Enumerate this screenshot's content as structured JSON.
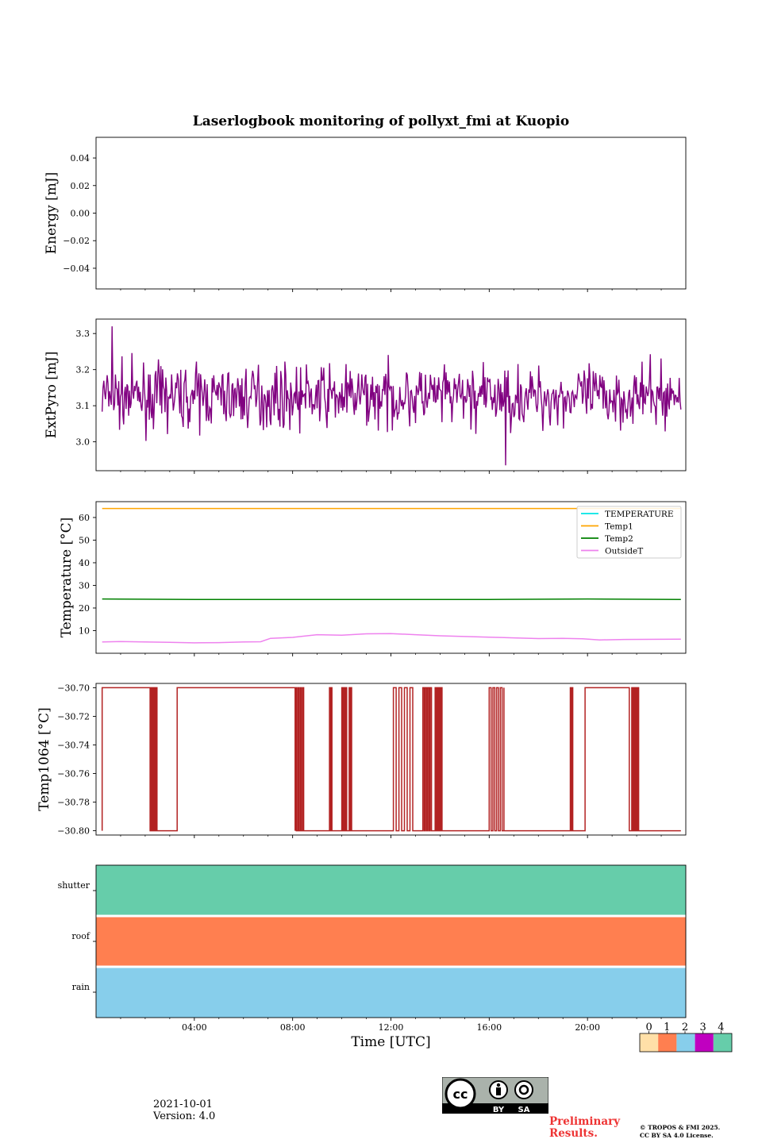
{
  "title": "Laserlogbook monitoring of pollyxt_fmi at Kuopio",
  "date": "2021-10-01",
  "version": "Version: 4.0",
  "preliminary": [
    "Preliminary",
    "Results."
  ],
  "copyright": [
    "© TROPOS & FMI 2025.",
    "CC BY SA 4.0 License."
  ],
  "license_badge": {
    "by": "BY",
    "sa": "SA"
  },
  "chart_data": [
    {
      "id": "energy",
      "type": "line",
      "ylabel": "Energy [mJ]",
      "ylim": [
        -0.055,
        0.055
      ],
      "yticks": [
        0.04,
        0.02,
        0.0,
        -0.02,
        -0.04
      ],
      "ytick_labels": [
        "0.04",
        "0.02",
        "0.00",
        "−0.02",
        "−0.04"
      ],
      "series": []
    },
    {
      "id": "extpyro",
      "type": "line",
      "ylabel": "ExtPyro [mJ]",
      "ylim": [
        2.92,
        3.34
      ],
      "yticks": [
        3.0,
        3.1,
        3.2,
        3.3
      ],
      "ytick_labels": [
        "3.0",
        "3.1",
        "3.2",
        "3.3"
      ],
      "series": [
        {
          "name": "ExtPyro",
          "color": "#800080",
          "mean": 3.125,
          "amplitude": 0.07,
          "x_range_hours": [
            0.25,
            23.8
          ],
          "min": 2.935,
          "max": 3.32
        }
      ]
    },
    {
      "id": "temperature",
      "type": "line",
      "ylabel": "Temperature [°C]",
      "ylim": [
        0,
        67
      ],
      "yticks": [
        10,
        20,
        30,
        40,
        50,
        60
      ],
      "ytick_labels": [
        "10",
        "20",
        "30",
        "40",
        "50",
        "60"
      ],
      "legend": "top-right",
      "series": [
        {
          "name": "TEMPERATURE",
          "color": "#00e5e5",
          "hours": [],
          "values": []
        },
        {
          "name": "Temp1",
          "color": "#ffa500",
          "hours": [
            0.25,
            23.8
          ],
          "values": [
            64,
            64
          ]
        },
        {
          "name": "Temp2",
          "color": "#008000",
          "hours": [
            0.25,
            4,
            8,
            12,
            16,
            20,
            23.8
          ],
          "values": [
            24,
            23.8,
            23.8,
            23.8,
            23.8,
            24,
            23.8
          ]
        },
        {
          "name": "OutsideT",
          "color": "#ee82ee",
          "hours": [
            0.25,
            1,
            2,
            3,
            4,
            5,
            6,
            6.7,
            7.1,
            8,
            9,
            10,
            11,
            12,
            13,
            14,
            15,
            16,
            17,
            18,
            19,
            19.8,
            20.5,
            21.5,
            23.8
          ],
          "values": [
            5,
            5.2,
            5,
            4.8,
            4.6,
            4.7,
            5,
            5.1,
            6.6,
            7,
            8.2,
            8,
            8.6,
            8.7,
            8.2,
            7.7,
            7.4,
            7.1,
            6.8,
            6.5,
            6.6,
            6.4,
            5.9,
            6.1,
            6.2
          ]
        }
      ]
    },
    {
      "id": "temp1064",
      "type": "line",
      "ylabel": "Temp1064 [°C]",
      "ylim": [
        -30.803,
        -30.697
      ],
      "yticks": [
        -30.7,
        -30.72,
        -30.74,
        -30.76,
        -30.78,
        -30.8
      ],
      "ytick_labels": [
        "−30.70",
        "−30.72",
        "−30.74",
        "−30.76",
        "−30.78",
        "−30.80"
      ],
      "series": [
        {
          "name": "Temp1064",
          "color": "#b22222",
          "levels": [
            -30.7,
            -30.8
          ],
          "high_intervals_hours": [
            [
              0.25,
              2.4
            ],
            [
              2.2,
              2.5
            ],
            [
              3.3,
              8.1
            ],
            [
              8.1,
              8.5
            ],
            [
              9.5,
              9.6
            ],
            [
              10,
              10.2
            ],
            [
              10.3,
              10.4
            ],
            [
              12.1,
              13.0
            ],
            [
              13.3,
              13.7
            ],
            [
              13.8,
              14.1
            ],
            [
              16.0,
              16.6
            ],
            [
              19.3,
              19.4
            ],
            [
              19.9,
              21.7
            ],
            [
              21.8,
              22.1
            ]
          ]
        }
      ]
    },
    {
      "id": "status",
      "type": "heatmap",
      "rows": [
        "shutter",
        "roof",
        "rain"
      ],
      "row_values": [
        4,
        1,
        2
      ],
      "colorbar": {
        "ticks": [
          "0",
          "1",
          "2",
          "3",
          "4"
        ],
        "colors": [
          "#ffe0a8",
          "#ff7f50",
          "#87ceeb",
          "#c000c0",
          "#66cdaa"
        ]
      },
      "xlabel": "Time [UTC]",
      "xticks_hours": [
        4,
        8,
        12,
        16,
        20
      ],
      "xtick_labels": [
        "04:00",
        "08:00",
        "12:00",
        "16:00",
        "20:00"
      ]
    }
  ]
}
